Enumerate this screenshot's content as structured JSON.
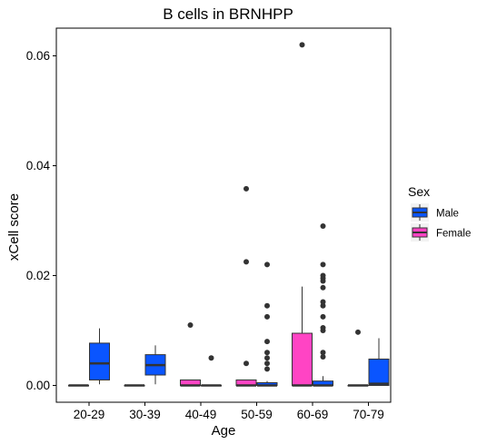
{
  "chart_data": {
    "type": "boxplot",
    "title": "B cells in BRNHPP",
    "xlabel": "Age",
    "ylabel": "xCell score",
    "ylim": [
      -0.003,
      0.065
    ],
    "yticks": [
      0.0,
      0.02,
      0.04,
      0.06
    ],
    "ytick_labels": [
      "0.00",
      "0.02",
      "0.04",
      "0.06"
    ],
    "categories": [
      "20-29",
      "30-39",
      "40-49",
      "50-59",
      "60-69",
      "70-79"
    ],
    "legend": {
      "title": "Sex",
      "placement": "right",
      "entries": [
        {
          "name": "Male",
          "color": "#0a55ff"
        },
        {
          "name": "Female",
          "color": "#ff44c4"
        }
      ]
    },
    "series": [
      {
        "name": "Female",
        "color": "#ff44c4",
        "boxes": [
          {
            "category": "20-29",
            "min": 0.0,
            "q1": 0.0,
            "median": 0.0,
            "q3": 0.0,
            "max": 0.0,
            "outliers": []
          },
          {
            "category": "30-39",
            "min": 0.0,
            "q1": 0.0,
            "median": 0.0,
            "q3": 0.0,
            "max": 0.0,
            "outliers": []
          },
          {
            "category": "40-49",
            "min": 0.0,
            "q1": 0.0,
            "median": 0.0,
            "q3": 0.001,
            "max": 0.001,
            "outliers": [
              0.011
            ]
          },
          {
            "category": "50-59",
            "min": 0.0,
            "q1": 0.0,
            "median": 0.0,
            "q3": 0.001,
            "max": 0.001,
            "outliers": [
              0.004,
              0.0225,
              0.0358
            ]
          },
          {
            "category": "60-69",
            "min": 0.0,
            "q1": 0.0,
            "median": 0.0,
            "q3": 0.0095,
            "max": 0.018,
            "outliers": [
              0.062
            ]
          },
          {
            "category": "70-79",
            "min": 0.0,
            "q1": 0.0,
            "median": 0.0,
            "q3": 0.0,
            "max": 0.0,
            "outliers": [
              0.0097
            ]
          }
        ]
      },
      {
        "name": "Male",
        "color": "#0a55ff",
        "boxes": [
          {
            "category": "20-29",
            "min": 0.0002,
            "q1": 0.001,
            "median": 0.004,
            "q3": 0.0077,
            "max": 0.0104,
            "outliers": []
          },
          {
            "category": "30-39",
            "min": 0.0002,
            "q1": 0.0019,
            "median": 0.0037,
            "q3": 0.0056,
            "max": 0.0073,
            "outliers": []
          },
          {
            "category": "40-49",
            "min": 0.0,
            "q1": 0.0,
            "median": 0.0,
            "q3": 0.0,
            "max": 0.0,
            "outliers": [
              0.005
            ]
          },
          {
            "category": "50-59",
            "min": 0.0,
            "q1": 0.0,
            "median": 0.0,
            "q3": 0.0005,
            "max": 0.0008,
            "outliers": [
              0.003,
              0.004,
              0.005,
              0.006,
              0.008,
              0.0125,
              0.0145,
              0.022
            ]
          },
          {
            "category": "60-69",
            "min": 0.0,
            "q1": 0.0,
            "median": 0.0,
            "q3": 0.0008,
            "max": 0.0017,
            "outliers": [
              0.0052,
              0.006,
              0.01,
              0.0105,
              0.0125,
              0.0145,
              0.0152,
              0.0178,
              0.019,
              0.0195,
              0.02,
              0.022,
              0.029
            ]
          },
          {
            "category": "70-79",
            "min": 0.0,
            "q1": 0.0,
            "median": 0.0003,
            "q3": 0.0048,
            "max": 0.0086,
            "outliers": []
          }
        ]
      }
    ]
  }
}
